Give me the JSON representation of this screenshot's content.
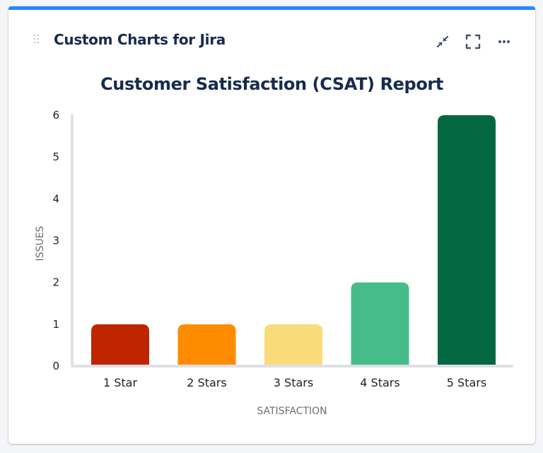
{
  "card": {
    "title": "Custom Charts for Jira",
    "accent_color": "#2684ff",
    "icons": [
      "drag-handle-icon",
      "collapse-icon",
      "fullscreen-icon",
      "more-icon"
    ]
  },
  "chart_data": {
    "type": "bar",
    "title": "Customer Satisfaction (CSAT) Report",
    "xlabel": "SATISFACTION",
    "ylabel": "ISSUES",
    "categories": [
      "1 Star",
      "2 Stars",
      "3 Stars",
      "4 Stars",
      "5 Stars"
    ],
    "values": [
      1,
      1,
      1,
      2,
      6
    ],
    "colors": [
      "#bf2600",
      "#ff8b00",
      "#fadb7a",
      "#47bc8b",
      "#036742"
    ],
    "ylim": [
      0,
      6
    ],
    "yticks": [
      "0",
      "1",
      "2",
      "3",
      "4",
      "5",
      "6"
    ],
    "grid": false,
    "legend": "none"
  }
}
